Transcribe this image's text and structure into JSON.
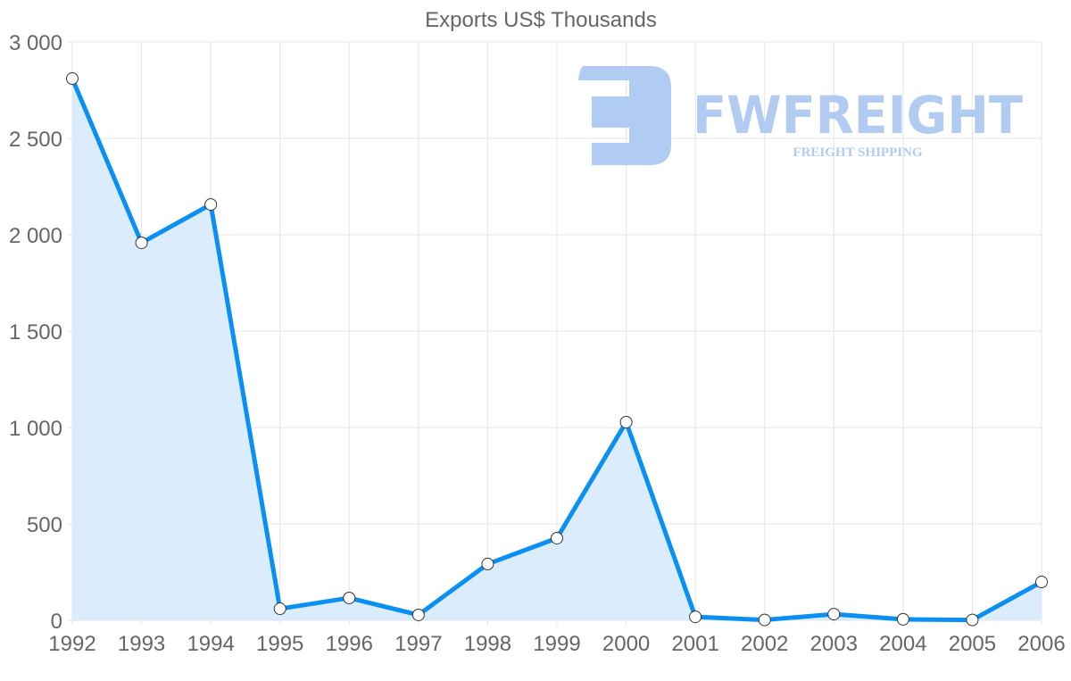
{
  "chart_data": {
    "type": "area",
    "title": "Exports US$ Thousands",
    "xlabel": "",
    "ylabel": "",
    "categories": [
      "1992",
      "1993",
      "1994",
      "1995",
      "1996",
      "1997",
      "1998",
      "1999",
      "2000",
      "2001",
      "2002",
      "2003",
      "2004",
      "2005",
      "2006"
    ],
    "series": [
      {
        "name": "Exports US$ Thousands",
        "values": [
          2810,
          1958,
          2157,
          60,
          116,
          28,
          292,
          426,
          1028,
          18,
          2,
          32,
          5,
          2,
          199
        ]
      }
    ],
    "ylim": [
      0,
      3000
    ],
    "yticks": [
      0,
      500,
      1000,
      1500,
      2000,
      2500,
      3000
    ],
    "ytick_labels": [
      "0",
      "500",
      "1 000",
      "1 500",
      "2 000",
      "2 500",
      "3 000"
    ],
    "grid": true,
    "legend": "none",
    "colors": {
      "line": "#0a8ff2",
      "fill": "#d9ecfd",
      "grid": "#e5e5e5",
      "logo": "#a9c6f2"
    }
  },
  "watermark": {
    "brand": "FWFREIGHT",
    "tagline": "FREIGHT SHIPPING"
  }
}
